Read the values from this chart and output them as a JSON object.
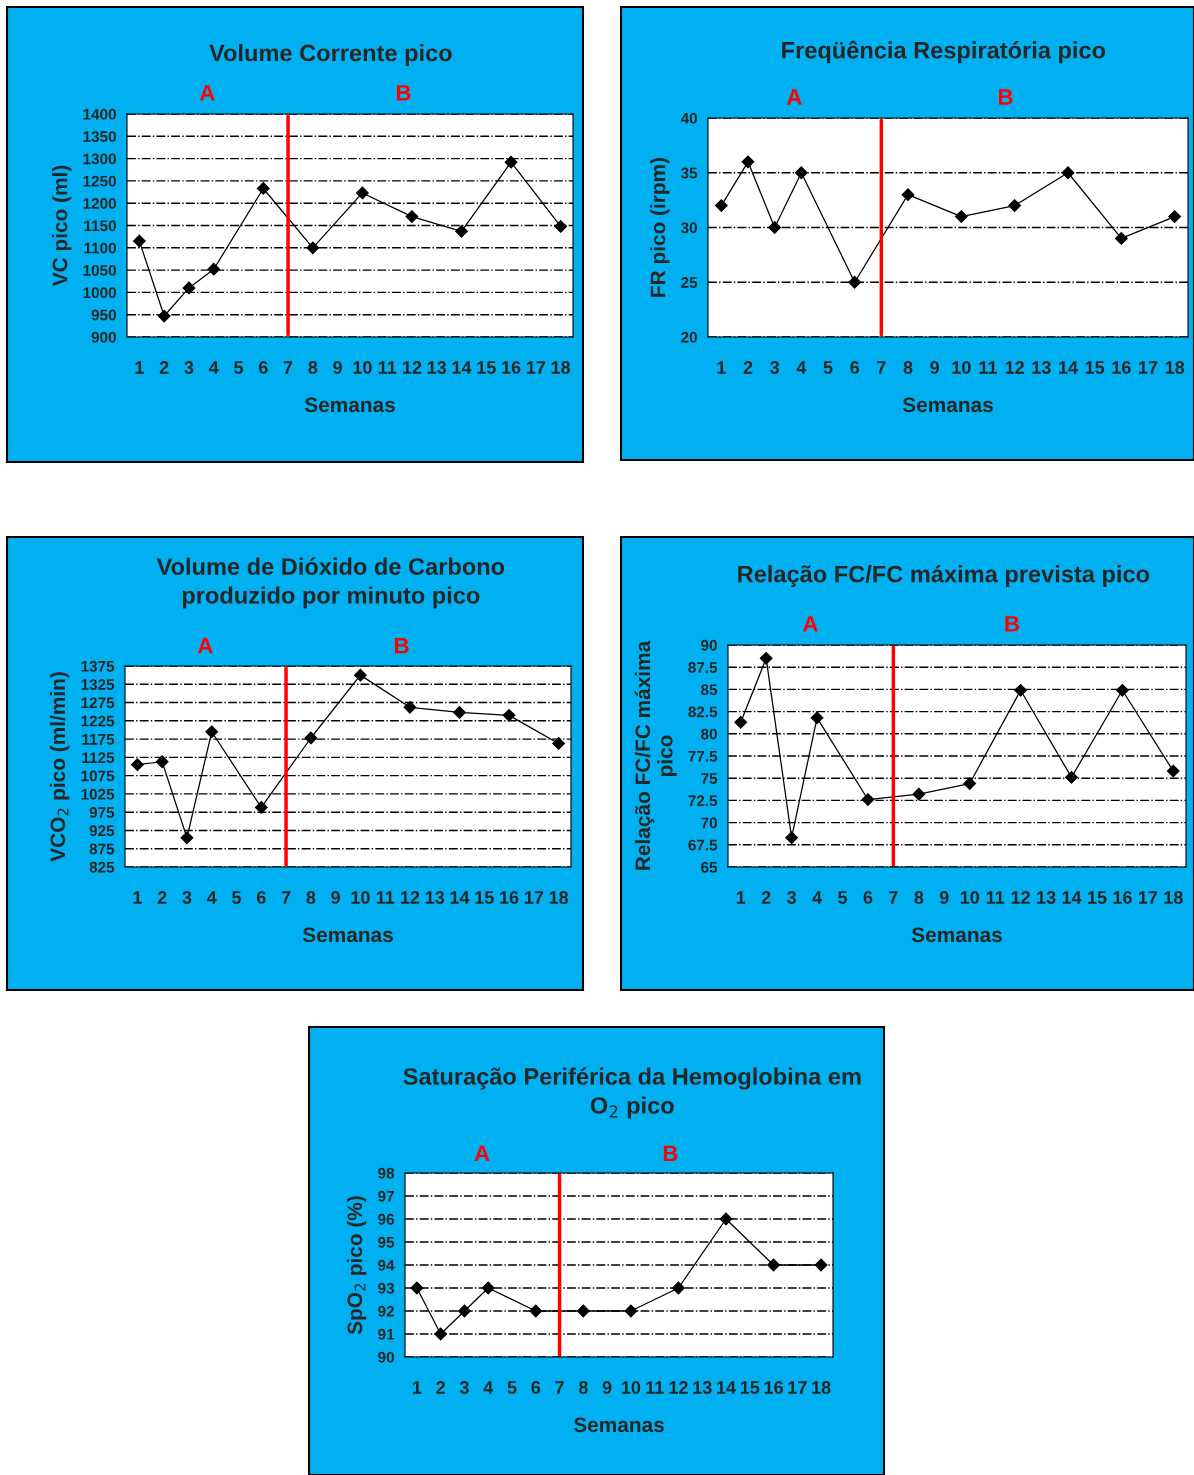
{
  "chart_data": [
    {
      "type": "line",
      "title": "Volume Corrente pico",
      "xlabel": "Semanas",
      "ylabel": "VC pico (ml)",
      "categories": [
        "1",
        "2",
        "3",
        "4",
        "5",
        "6",
        "7",
        "8",
        "9",
        "10",
        "11",
        "12",
        "13",
        "14",
        "15",
        "16",
        "17",
        "18"
      ],
      "series": [
        {
          "color": "#000000",
          "values": [
            1115,
            947,
            1010,
            1052,
            null,
            1233,
            null,
            1100,
            null,
            1223,
            null,
            1170,
            null,
            1137,
            null,
            1292,
            null,
            1148
          ]
        }
      ],
      "ylim": [
        900,
        1400
      ],
      "yticks": [
        900,
        950,
        1000,
        1050,
        1100,
        1150,
        1200,
        1250,
        1300,
        1350,
        1400
      ],
      "grid": "y",
      "marker": "diamond",
      "legend": false,
      "ref_lines": [
        {
          "axis": "x",
          "value": "7",
          "color": "#ff0000"
        }
      ],
      "annotations": [
        "A",
        "B"
      ]
    },
    {
      "type": "line",
      "title": "Freqüência Respiratória pico",
      "xlabel": "Semanas",
      "ylabel": "FR pico (irpm)",
      "categories": [
        "1",
        "2",
        "3",
        "4",
        "5",
        "6",
        "7",
        "8",
        "9",
        "10",
        "11",
        "12",
        "13",
        "14",
        "15",
        "16",
        "17",
        "18"
      ],
      "series": [
        {
          "color": "#000000",
          "values": [
            32,
            36,
            30,
            35,
            null,
            25,
            null,
            33,
            null,
            31,
            null,
            32,
            null,
            35,
            null,
            29,
            null,
            31
          ]
        }
      ],
      "ylim": [
        20,
        40
      ],
      "yticks": [
        20,
        25,
        30,
        35,
        40
      ],
      "grid": "y",
      "marker": "diamond",
      "legend": false,
      "ref_lines": [
        {
          "axis": "x",
          "value": "7",
          "color": "#ff0000"
        }
      ],
      "annotations": [
        "A",
        "B"
      ]
    },
    {
      "type": "line",
      "title": "Volume de Dióxido de Carbono\nproduzido por minuto pico",
      "xlabel": "Semanas",
      "ylabel": "VCO$_{2}$ pico (ml/min)",
      "categories": [
        "1",
        "2",
        "3",
        "4",
        "5",
        "6",
        "7",
        "8",
        "9",
        "10",
        "11",
        "12",
        "13",
        "14",
        "15",
        "16",
        "17",
        "18"
      ],
      "series": [
        {
          "color": "#000000",
          "values": [
            1105,
            1113,
            905,
            1195,
            null,
            988,
            null,
            1178,
            null,
            1350,
            null,
            1262,
            null,
            1248,
            null,
            1240,
            null,
            1163
          ]
        }
      ],
      "ylim": [
        825,
        1375
      ],
      "yticks": [
        825,
        875,
        925,
        975,
        1025,
        1075,
        1125,
        1175,
        1225,
        1275,
        1325,
        1375
      ],
      "grid": "y",
      "marker": "diamond",
      "legend": false,
      "ref_lines": [
        {
          "axis": "x",
          "value": "7",
          "color": "#ff0000"
        }
      ],
      "annotations": [
        "A",
        "B"
      ]
    },
    {
      "type": "line",
      "title": "Relação FC/FC máxima prevista pico",
      "xlabel": "Semanas",
      "ylabel": "Relação FC/FC máxima\npico",
      "categories": [
        "1",
        "2",
        "3",
        "4",
        "5",
        "6",
        "7",
        "8",
        "9",
        "10",
        "11",
        "12",
        "13",
        "14",
        "15",
        "16",
        "17",
        "18"
      ],
      "series": [
        {
          "color": "#000000",
          "values": [
            81.3,
            88.5,
            68.3,
            81.8,
            null,
            72.6,
            null,
            73.2,
            null,
            74.4,
            null,
            84.9,
            null,
            75.1,
            null,
            84.9,
            null,
            75.8
          ]
        }
      ],
      "ylim": [
        65,
        90
      ],
      "yticks": [
        65,
        67.5,
        70,
        72.5,
        75,
        77.5,
        80,
        82.5,
        85,
        87.5,
        90
      ],
      "grid": "y",
      "marker": "diamond",
      "legend": false,
      "ref_lines": [
        {
          "axis": "x",
          "value": "7",
          "color": "#ff0000"
        }
      ],
      "annotations": [
        "A",
        "B"
      ]
    },
    {
      "type": "line",
      "title": "Saturação Periférica da Hemoglobina em\nO$_{2}$ pico",
      "xlabel": "Semanas",
      "ylabel": "SpO$_{2}$ pico (%)",
      "categories": [
        "1",
        "2",
        "3",
        "4",
        "5",
        "6",
        "7",
        "8",
        "9",
        "10",
        "11",
        "12",
        "13",
        "14",
        "15",
        "16",
        "17",
        "18"
      ],
      "series": [
        {
          "color": "#000000",
          "values": [
            93,
            91,
            92,
            93,
            null,
            92,
            null,
            92,
            null,
            92,
            null,
            93,
            null,
            96,
            null,
            94,
            null,
            94
          ]
        }
      ],
      "ylim": [
        90,
        98
      ],
      "yticks": [
        90,
        91,
        92,
        93,
        94,
        95,
        96,
        97,
        98
      ],
      "grid": "y",
      "marker": "diamond",
      "legend": false,
      "ref_lines": [
        {
          "axis": "x",
          "value": "7",
          "color": "#ff0000"
        }
      ],
      "annotations": [
        "A",
        "B"
      ]
    }
  ]
}
